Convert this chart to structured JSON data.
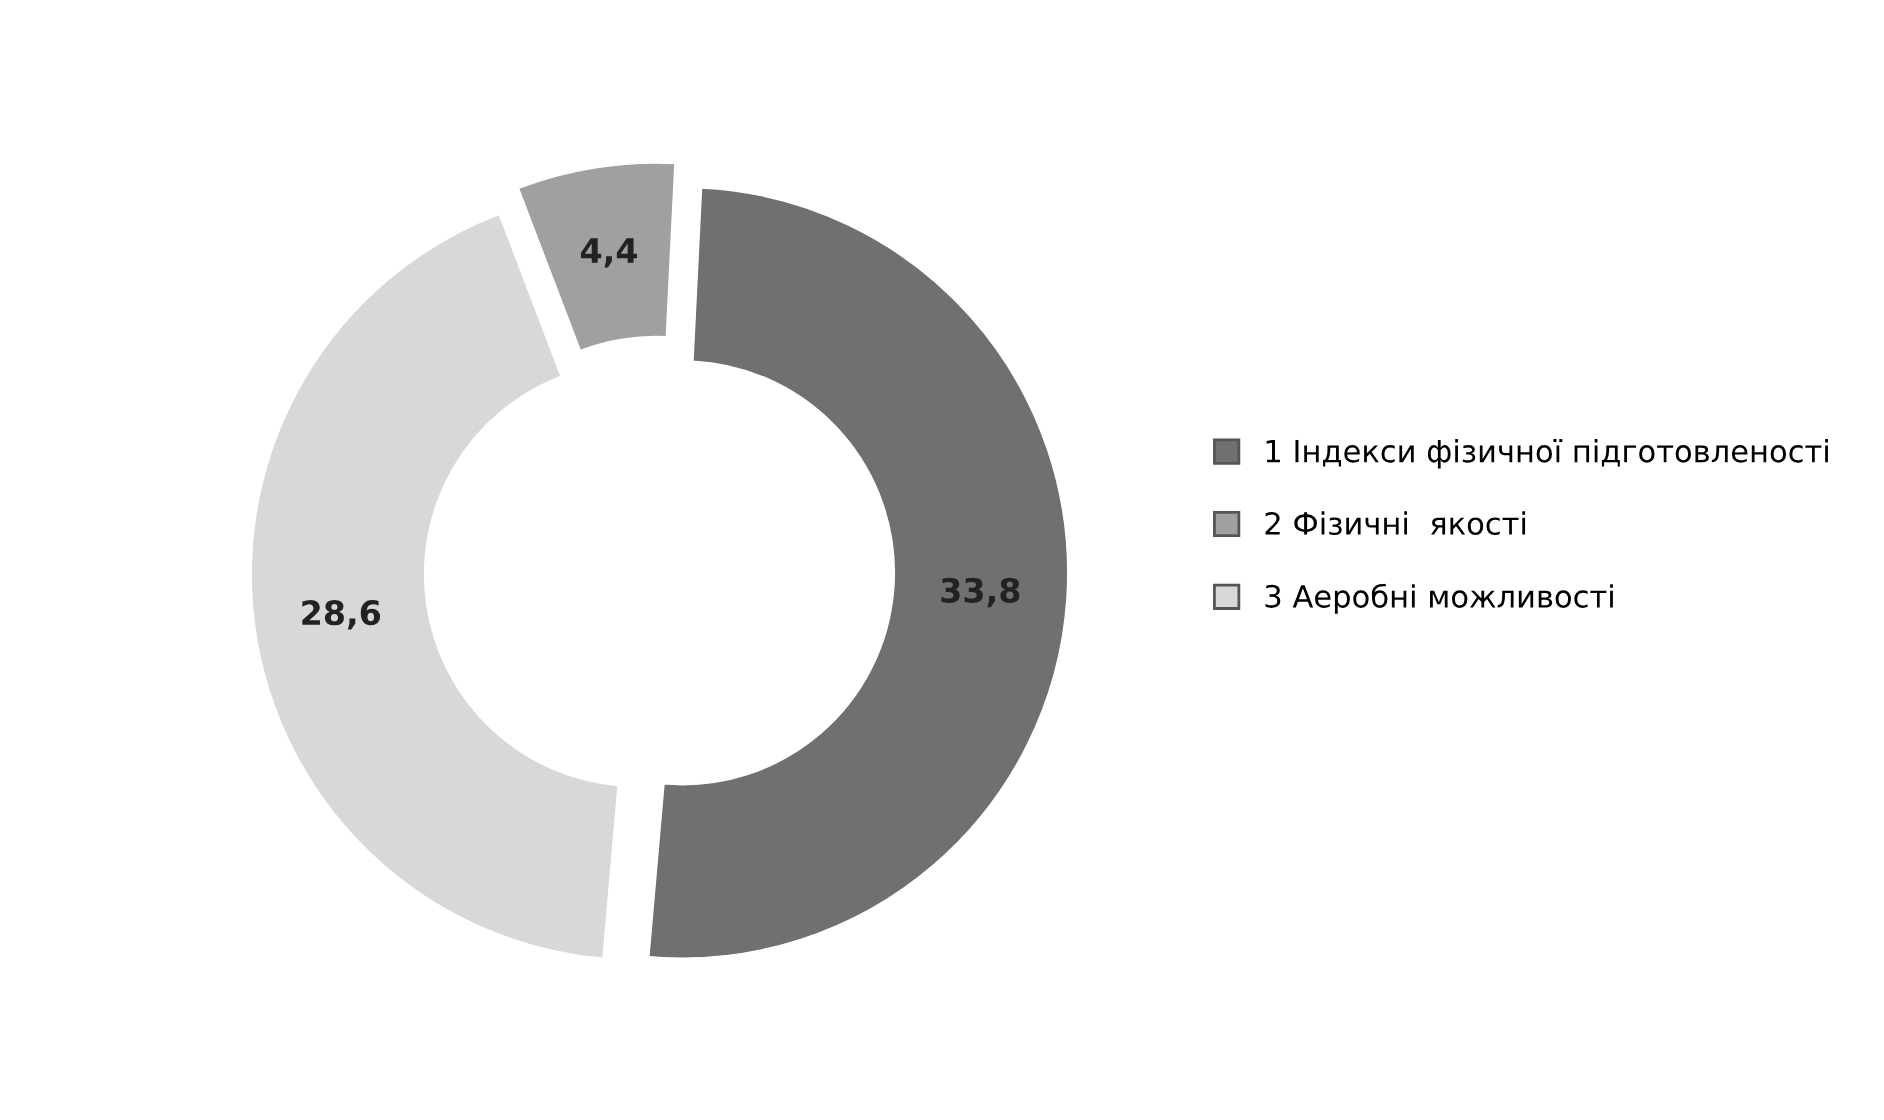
{
  "chart_data": {
    "type": "donut",
    "categories": [
      "1 Індекси фізичної підготовленості",
      "2 Фізичні  якості",
      "3 Аеробні можливості"
    ],
    "values": [
      33.8,
      4.4,
      28.6
    ],
    "value_labels": [
      "33,8",
      "4,4",
      "28,6"
    ],
    "colors": [
      "#707070",
      "#a0a0a0",
      "#d8d8d8"
    ],
    "legend": "right"
  }
}
